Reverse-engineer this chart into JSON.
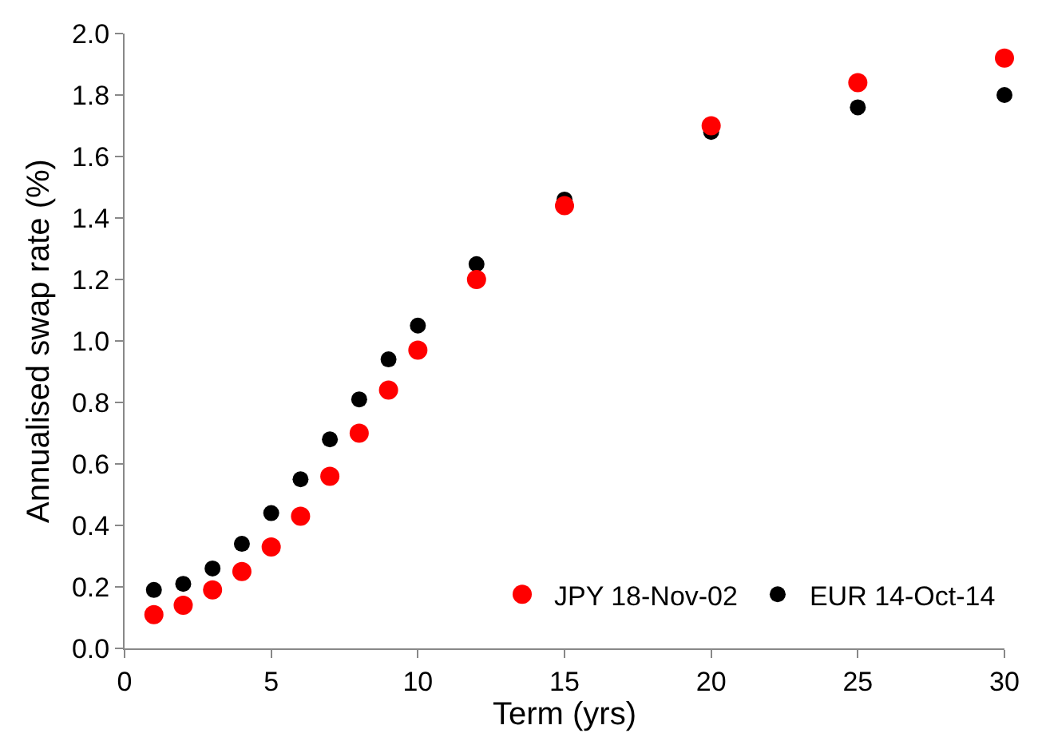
{
  "chart_data": {
    "type": "scatter",
    "xlabel": "Term (yrs)",
    "ylabel": "Annualised swap rate (%)",
    "x": [
      1,
      2,
      3,
      4,
      5,
      6,
      7,
      8,
      9,
      10,
      12,
      15,
      20,
      25,
      30
    ],
    "series": [
      {
        "name": "JPY 18-Nov-02",
        "color": "#ff0000",
        "values": [
          0.11,
          0.14,
          0.19,
          0.25,
          0.33,
          0.43,
          0.56,
          0.7,
          0.84,
          0.97,
          1.2,
          1.44,
          1.7,
          1.84,
          1.92
        ]
      },
      {
        "name": "EUR 14-Oct-14",
        "color": "#000000",
        "values": [
          0.19,
          0.21,
          0.26,
          0.34,
          0.44,
          0.55,
          0.68,
          0.81,
          0.94,
          1.05,
          1.25,
          1.46,
          1.68,
          1.76,
          1.8
        ]
      }
    ],
    "xlim": [
      0,
      30
    ],
    "xticks": [
      0,
      5,
      10,
      15,
      20,
      25,
      30
    ],
    "ylim": [
      0,
      2
    ],
    "yticks": [
      {
        "value": 0,
        "label": "0.0"
      },
      {
        "value": 0.2,
        "label": "0.2"
      },
      {
        "value": 0.4,
        "label": "0.4"
      },
      {
        "value": 0.6,
        "label": "0.6"
      },
      {
        "value": 0.8,
        "label": "0.8"
      },
      {
        "value": 1,
        "label": "1.0"
      },
      {
        "value": 1.2,
        "label": "1.2"
      },
      {
        "value": 1.4,
        "label": "1.4"
      },
      {
        "value": 1.6,
        "label": "1.6"
      },
      {
        "value": 1.8,
        "label": "1.8"
      },
      {
        "value": 2,
        "label": "2.0"
      }
    ],
    "grid": false,
    "legend": "bottom right",
    "marker": "circle"
  }
}
